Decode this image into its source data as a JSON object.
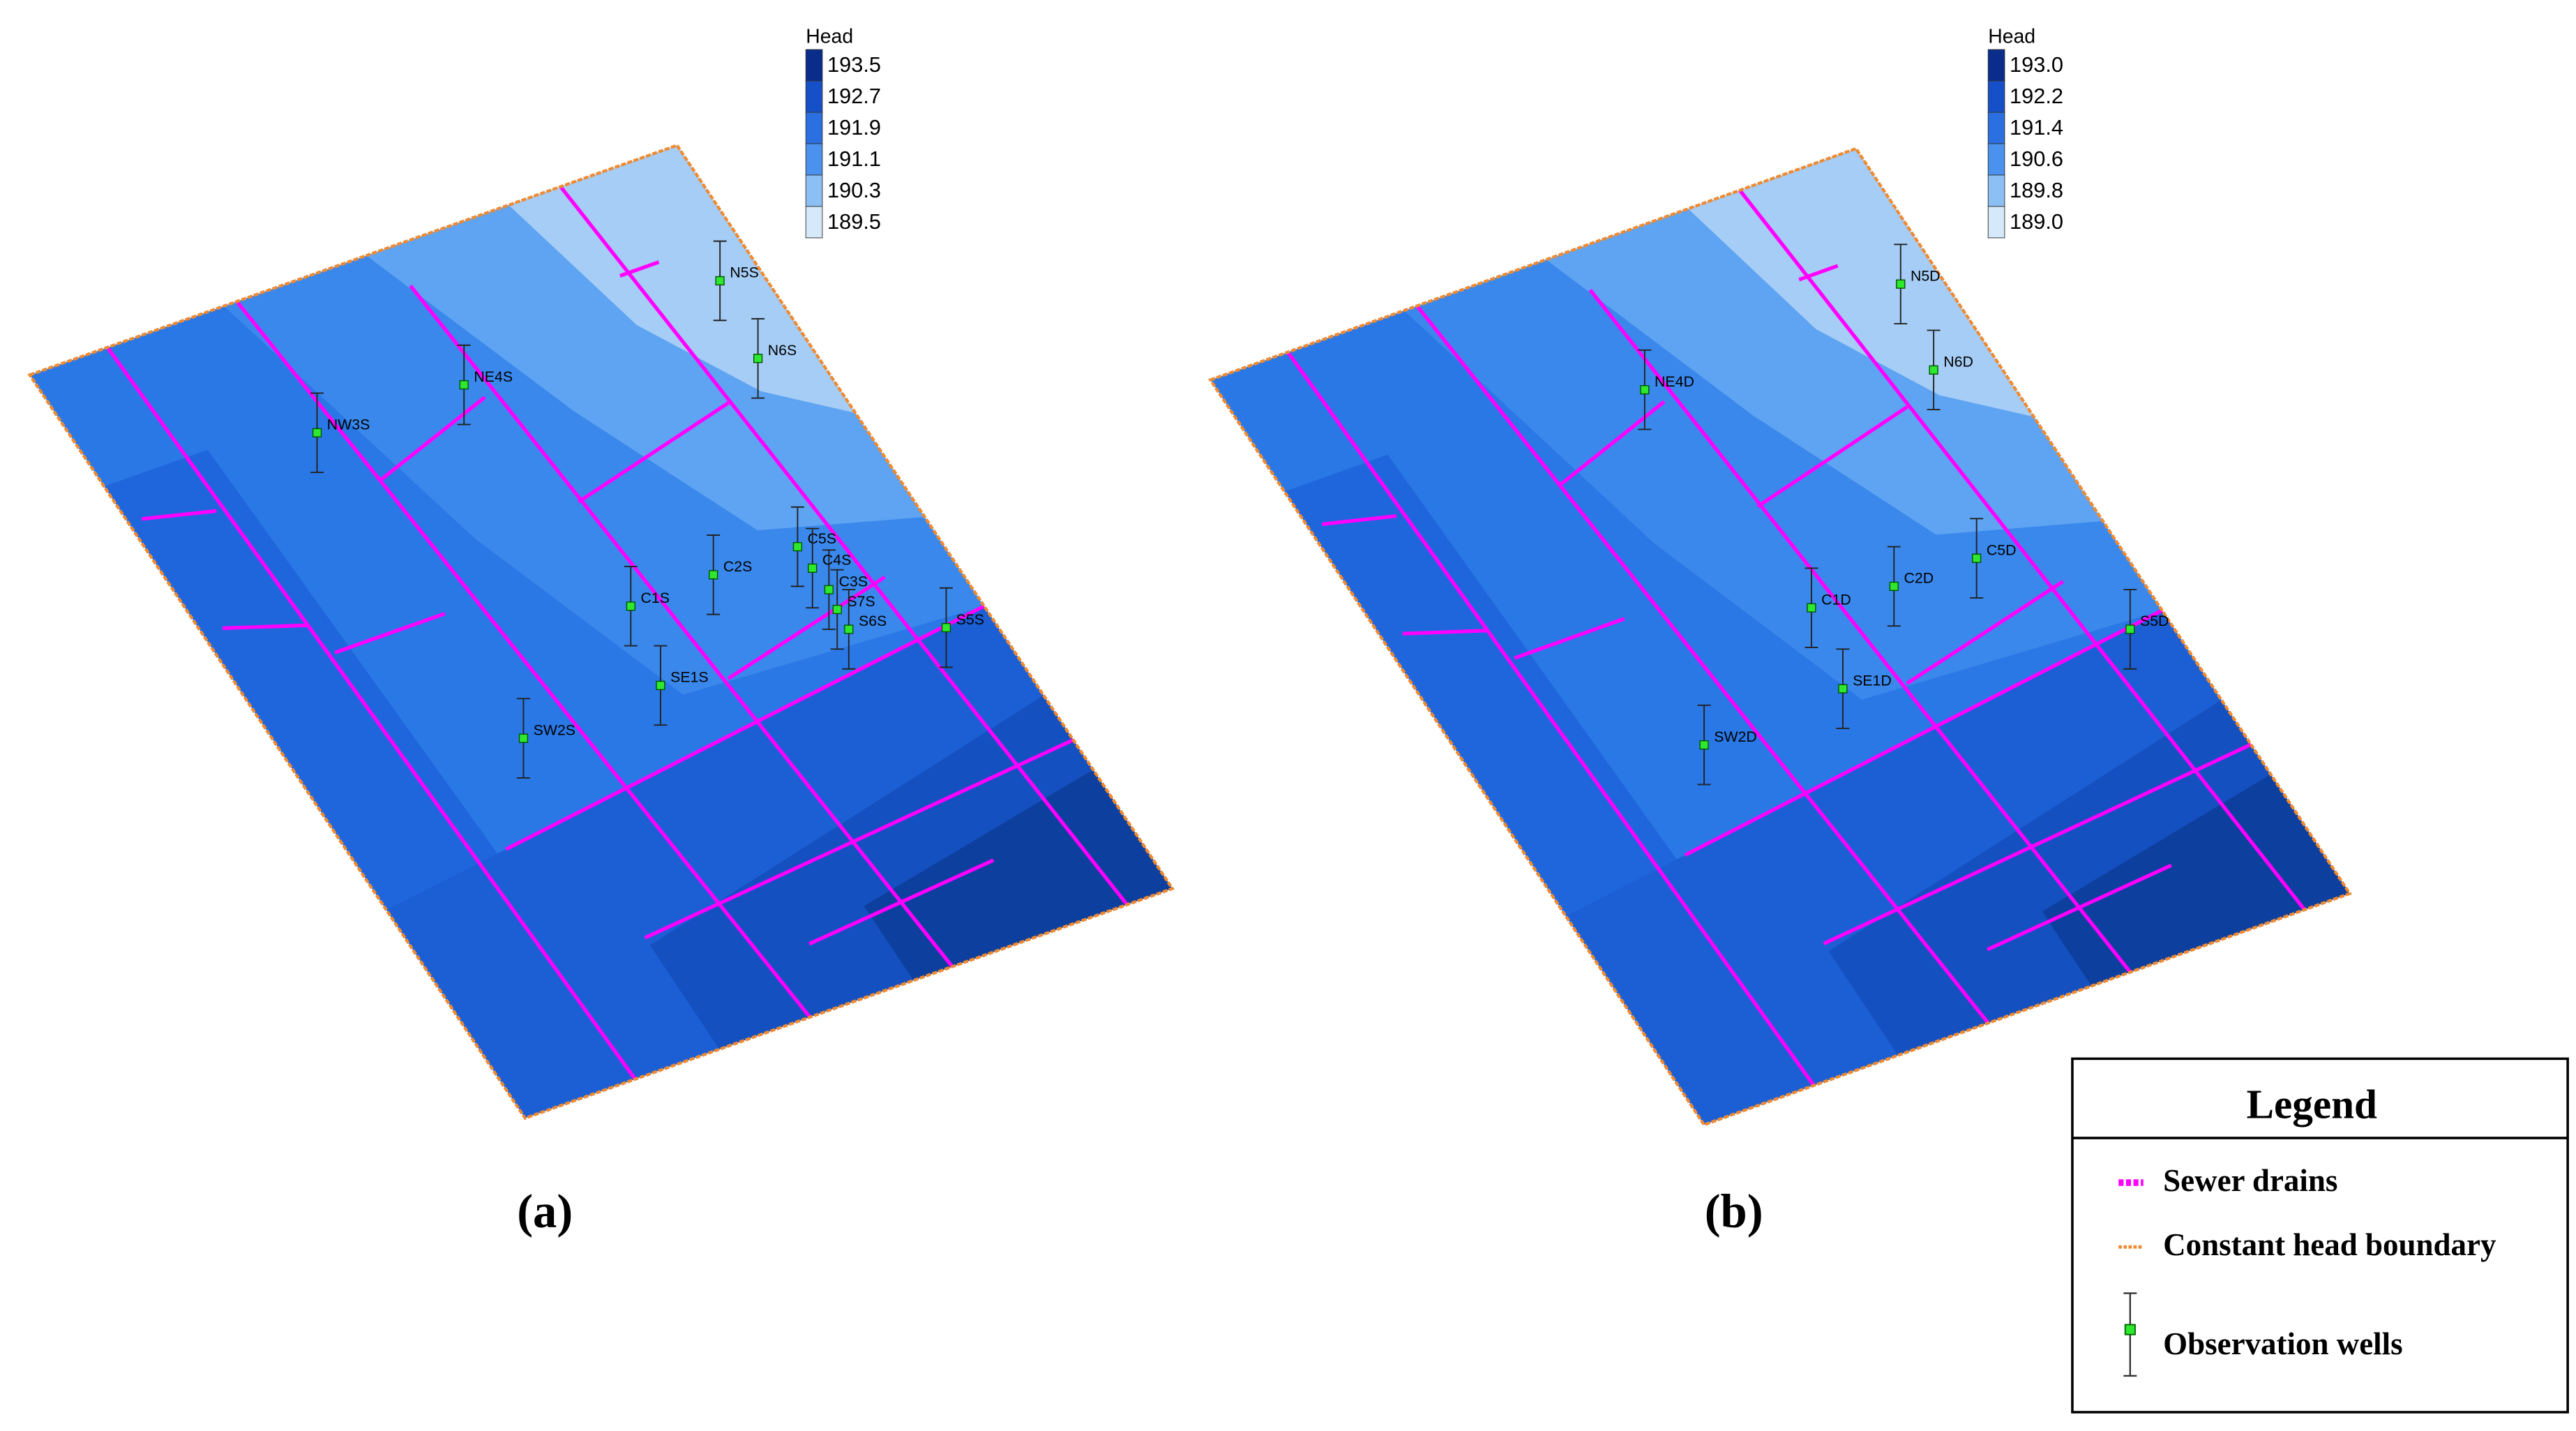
{
  "panels": [
    {
      "label": "(a)",
      "colorbar": {
        "title": "Head",
        "ticks": [
          "193.5",
          "192.7",
          "191.9",
          "191.1",
          "190.3",
          "189.5"
        ]
      },
      "wells": [
        "NW3S",
        "NE4S",
        "N5S",
        "N6S",
        "C5S",
        "C4S",
        "C2S",
        "C3S",
        "S7S",
        "S6S",
        "C1S",
        "SE1S",
        "S5S",
        "SW2S"
      ]
    },
    {
      "label": "(b)",
      "colorbar": {
        "title": "Head",
        "ticks": [
          "193.0",
          "192.2",
          "191.4",
          "190.6",
          "189.8",
          "189.0"
        ]
      },
      "wells": [
        "NE4D",
        "N5D",
        "N6D",
        "C5D",
        "C2D",
        "C1D",
        "SE1D",
        "SW2D",
        "S5D"
      ]
    }
  ],
  "legend": {
    "title": "Legend",
    "items": [
      "Sewer drains",
      "Constant head boundary",
      "Observation wells"
    ]
  }
}
